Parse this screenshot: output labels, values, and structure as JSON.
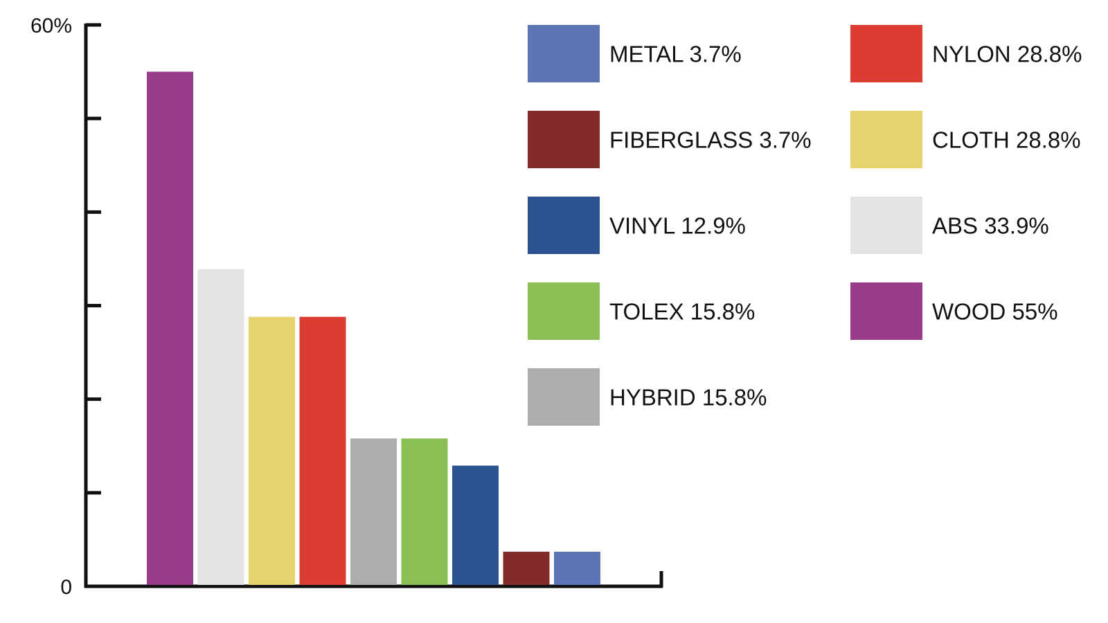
{
  "chart_data": {
    "type": "bar",
    "title": "",
    "xlabel": "",
    "ylabel": "",
    "ylim": [
      0,
      60
    ],
    "ytick_count": 7,
    "ytick_labels": [
      {
        "value": 0,
        "label": "0"
      },
      {
        "value": 60,
        "label": "60%"
      }
    ],
    "grid": false,
    "legend_position": "right",
    "bars": [
      {
        "label": "WOOD",
        "value": 55,
        "color": "#993A8B"
      },
      {
        "label": "ABS",
        "value": 33.9,
        "color": "#E2E3E3"
      },
      {
        "label": "CLOTH",
        "value": 28.8,
        "color": "#E6D36E"
      },
      {
        "label": "NYLON",
        "value": 28.8,
        "color": "#DC3D33"
      },
      {
        "label": "HYBRID",
        "value": 15.8,
        "color": "#ACADAF"
      },
      {
        "label": "TOLEX",
        "value": 15.8,
        "color": "#8BBF55"
      },
      {
        "label": "VINYL",
        "value": 12.9,
        "color": "#2B5291"
      },
      {
        "label": "FIBERGLASS",
        "value": 3.7,
        "color": "#852A2A"
      },
      {
        "label": "METAL",
        "value": 3.7,
        "color": "#5C75B5"
      }
    ],
    "legend": [
      {
        "text": "METAL 3.7%",
        "color": "#5C75B5"
      },
      {
        "text": "FIBERGLASS 3.7%",
        "color": "#852A2A"
      },
      {
        "text": "VINYL 12.9%",
        "color": "#2B5291"
      },
      {
        "text": "TOLEX 15.8%",
        "color": "#8BBF55"
      },
      {
        "text": "HYBRID 15.8%",
        "color": "#ACADAF"
      },
      {
        "text": "NYLON 28.8%",
        "color": "#DC3D33"
      },
      {
        "text": "CLOTH 28.8%",
        "color": "#E6D36E"
      },
      {
        "text": "ABS 33.9%",
        "color": "#E2E3E3"
      },
      {
        "text": "WOOD 55%",
        "color": "#993A8B"
      }
    ]
  }
}
